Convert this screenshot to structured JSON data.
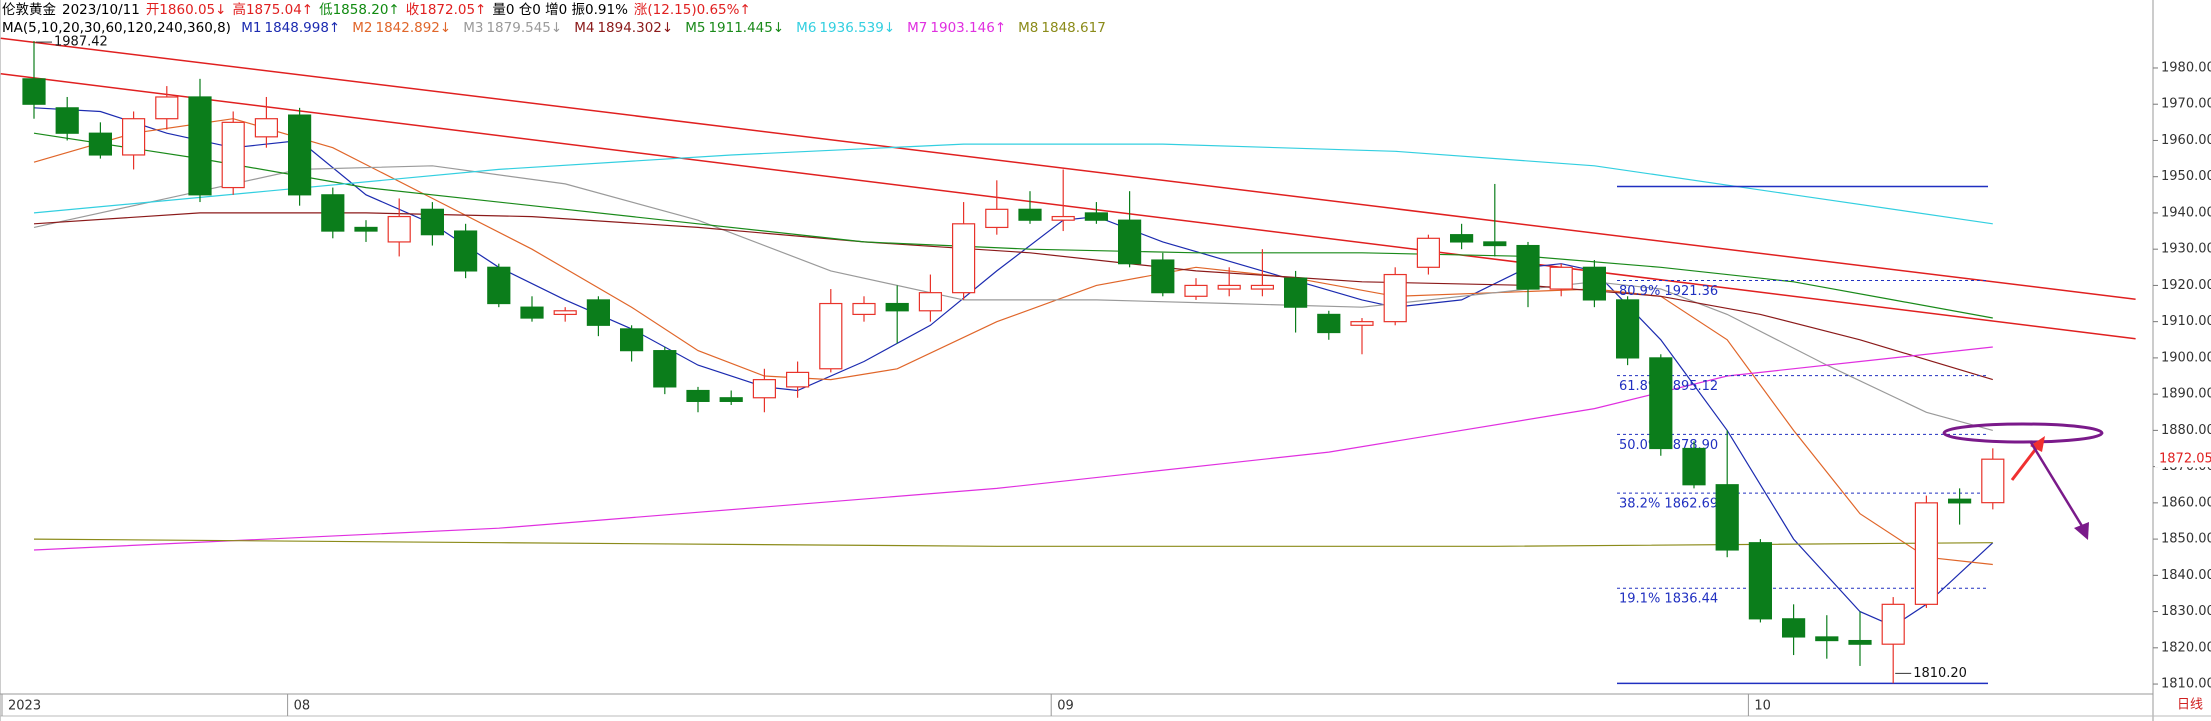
{
  "chart_data": {
    "type": "candlestick",
    "header": [
      {
        "text": "伦敦黄金",
        "color": "#000000"
      },
      {
        "text": "2023/10/11",
        "color": "#000000"
      },
      {
        "text": "开1860.05↓",
        "color": "#e02020"
      },
      {
        "text": "高1875.04↑",
        "color": "#e02020"
      },
      {
        "text": "低1858.20↑",
        "color": "#108a10"
      },
      {
        "text": "收1872.05↑",
        "color": "#e02020"
      },
      {
        "text": "量0 仓0 增0 振0.91%",
        "color": "#000000"
      },
      {
        "text": "涨(12.15)0.65%↑",
        "color": "#e02020"
      }
    ],
    "ma_title": "MA(5,10,20,30,60,120,240,360,8)",
    "categories": [
      "2023",
      null,
      null,
      null,
      null,
      null,
      null,
      null,
      "08",
      null,
      null,
      null,
      null,
      null,
      null,
      null,
      null,
      null,
      null,
      null,
      null,
      null,
      null,
      null,
      null,
      null,
      null,
      null,
      null,
      null,
      null,
      "09",
      null,
      null,
      null,
      null,
      null,
      null,
      null,
      null,
      null,
      null,
      null,
      null,
      null,
      null,
      null,
      null,
      null,
      null,
      null,
      null,
      "10",
      null,
      null,
      null,
      null,
      null,
      null,
      null
    ],
    "open": [
      1977,
      1969,
      1962,
      1956,
      1966,
      1972,
      1947,
      1961,
      1967,
      1945,
      1936,
      1932,
      1941,
      1935,
      1925,
      1914,
      1912,
      1916,
      1908,
      1902,
      1891,
      1889,
      1889,
      1892,
      1897,
      1912,
      1915,
      1913,
      1918,
      1936,
      1941,
      1938,
      1940,
      1938,
      1927,
      1917,
      1919,
      1919,
      1922,
      1912,
      1909,
      1910,
      1925,
      1934,
      1932,
      1931,
      1919,
      1925,
      1916,
      1900,
      1875,
      1865,
      1849,
      1828,
      1823,
      1822,
      1821,
      1832,
      1861,
      1860.05
    ],
    "high": [
      1987.42,
      1972,
      1965,
      1968,
      1975,
      1977,
      1968,
      1972,
      1969,
      1947,
      1938,
      1944,
      1943,
      1937,
      1926,
      1917,
      1914,
      1917,
      1909,
      1903,
      1892,
      1891,
      1897,
      1899,
      1919,
      1917,
      1920,
      1923,
      1943,
      1949,
      1946,
      1952,
      1943,
      1946,
      1929,
      1922,
      1925,
      1930,
      1924,
      1913,
      1911,
      1925,
      1934,
      1937,
      1948,
      1932,
      1926,
      1927,
      1917,
      1901,
      1877,
      1880,
      1850,
      1832,
      1829,
      1830,
      1834,
      1862,
      1864,
      1875.04
    ],
    "low": [
      1966,
      1960,
      1955,
      1952,
      1963,
      1943,
      1945,
      1958,
      1942,
      1933,
      1932,
      1928,
      1931,
      1922,
      1914,
      1910,
      1910,
      1906,
      1899,
      1890,
      1885,
      1887,
      1885,
      1889,
      1896,
      1910,
      1904,
      1910,
      1916,
      1934,
      1937,
      1935,
      1937,
      1925,
      1917,
      1916,
      1917,
      1917,
      1907,
      1905,
      1901,
      1909,
      1923,
      1930,
      1928,
      1914,
      1917,
      1914,
      1898,
      1873,
      1864,
      1845,
      1827,
      1818,
      1817,
      1815,
      1810.2,
      1831,
      1854,
      1858.2
    ],
    "close": [
      1970,
      1962,
      1956,
      1966,
      1972,
      1945,
      1965,
      1966,
      1945,
      1935,
      1935,
      1939,
      1934,
      1924,
      1915,
      1911,
      1913,
      1909,
      1902,
      1892,
      1888,
      1888,
      1894,
      1896,
      1915,
      1915,
      1913,
      1918,
      1937,
      1941,
      1938,
      1939,
      1938,
      1926,
      1918,
      1920,
      1920,
      1920,
      1914,
      1907,
      1910,
      1923,
      1933,
      1932,
      1931,
      1919,
      1925,
      1916,
      1900,
      1875,
      1865,
      1847,
      1828,
      1823,
      1822,
      1821,
      1832,
      1860,
      1860,
      1872.05
    ],
    "up_color": "#e8332a",
    "down_color": "#0b7d1b",
    "series": [
      {
        "name": "M1",
        "last": "1848.998↑",
        "color": "#1c2bb0",
        "x": [
          1,
          3,
          5,
          7,
          9,
          11,
          13,
          15,
          17,
          19,
          21,
          23,
          24,
          26,
          28,
          30,
          32,
          33,
          35,
          38,
          41,
          42,
          44,
          46,
          47,
          48,
          50,
          52,
          54,
          56,
          57,
          58,
          60
        ],
        "values": [
          1969,
          1968,
          1962,
          1958,
          1960,
          1945,
          1937,
          1925,
          1916,
          1908,
          1898,
          1892,
          1891,
          1899,
          1909,
          1924,
          1938,
          1939,
          1932,
          1924,
          1916,
          1914,
          1916,
          1925,
          1926,
          1924,
          1905,
          1880,
          1850,
          1830,
          1826,
          1832,
          1849
        ]
      },
      {
        "name": "M2",
        "last": "1842.892↓",
        "color": "#e0662a",
        "x": [
          1,
          4,
          7,
          10,
          13,
          16,
          19,
          21,
          23,
          25,
          27,
          30,
          33,
          36,
          39,
          42,
          45,
          48,
          50,
          52,
          54,
          56,
          58,
          60
        ],
        "values": [
          1954,
          1962,
          1966,
          1958,
          1944,
          1930,
          1914,
          1902,
          1895,
          1894,
          1897,
          1910,
          1920,
          1925,
          1922,
          1917,
          1918,
          1919,
          1917,
          1905,
          1880,
          1857,
          1845,
          1843
        ]
      },
      {
        "name": "M3",
        "last": "1879.545↓",
        "color": "#9a9a9a",
        "x": [
          1,
          5,
          9,
          13,
          17,
          21,
          25,
          29,
          33,
          37,
          41,
          45,
          48,
          50,
          52,
          55,
          58,
          60
        ],
        "values": [
          1936,
          1944,
          1952,
          1953,
          1948,
          1938,
          1924,
          1916,
          1916,
          1915,
          1914,
          1918,
          1921,
          1919,
          1912,
          1898,
          1885,
          1880
        ]
      },
      {
        "name": "M4",
        "last": "1894.302↓",
        "color": "#8b1a1a",
        "x": [
          1,
          6,
          11,
          16,
          21,
          26,
          31,
          36,
          41,
          46,
          50,
          53,
          56,
          60
        ],
        "values": [
          1937,
          1940,
          1940,
          1939,
          1936,
          1932,
          1929,
          1924,
          1921,
          1920,
          1917,
          1912,
          1905,
          1894
        ]
      },
      {
        "name": "M5",
        "last": "1911.445↓",
        "color": "#1a8a1a",
        "x": [
          1,
          6,
          11,
          16,
          21,
          26,
          31,
          36,
          41,
          46,
          50,
          54,
          57,
          60
        ],
        "values": [
          1962,
          1955,
          1947,
          1942,
          1937,
          1932,
          1930,
          1929,
          1929,
          1928,
          1925,
          1921,
          1916,
          1911
        ]
      },
      {
        "name": "M6",
        "last": "1936.539↓",
        "color": "#33cfe0",
        "x": [
          1,
          8,
          15,
          22,
          29,
          35,
          42,
          48,
          54,
          60
        ],
        "values": [
          1940,
          1946,
          1952,
          1956,
          1959,
          1959,
          1957,
          1953,
          1945,
          1937
        ]
      },
      {
        "name": "M7",
        "last": "1903.146↑",
        "color": "#e030e0",
        "x": [
          1,
          15,
          30,
          40,
          48,
          52,
          56,
          60
        ],
        "values": [
          1847,
          1853,
          1864,
          1874,
          1886,
          1895,
          1899,
          1903
        ]
      },
      {
        "name": "M8",
        "last": "1848.617",
        "color": "#8b8b1a",
        "x": [
          1,
          15,
          30,
          45,
          60
        ],
        "values": [
          1850,
          1849,
          1848,
          1848,
          1849
        ]
      }
    ],
    "trendlines": [
      {
        "color": "#e02020",
        "x": [
          0,
          64.3
        ],
        "values": [
          1988.2,
          1916.2
        ]
      },
      {
        "color": "#e02020",
        "x": [
          0,
          64.3
        ],
        "values": [
          1978.4,
          1905.3
        ]
      }
    ],
    "hlines": [
      1947.3,
      1810.2
    ],
    "fib": [
      {
        "value": 1921.36,
        "label": "80.9% 1921.36"
      },
      {
        "value": 1895.12,
        "label": "61.8% 1895.12"
      },
      {
        "value": 1878.9,
        "label": "50.0% 1878.90"
      },
      {
        "value": 1862.69,
        "label": "38.2% 1862.69"
      },
      {
        "value": 1836.44,
        "label": "19.1% 1836.44"
      }
    ],
    "annotations": [
      {
        "x": 1,
        "value": 1987.42,
        "label": "1987.42"
      },
      {
        "x": 57,
        "value": 1810.2,
        "label": "1810.20"
      }
    ],
    "last_price": 1872.05,
    "period": "日线",
    "ylim": [
      1805.6,
      1989.1
    ],
    "yticks": [
      {
        "value": 1810,
        "label": "1810.00"
      },
      {
        "value": 1820,
        "label": "1820.00"
      },
      {
        "value": 1830,
        "label": "1830.00"
      },
      {
        "value": 1840,
        "label": "1840.00"
      },
      {
        "value": 1850,
        "label": "1850.00"
      },
      {
        "value": 1860,
        "label": "1860.00"
      },
      {
        "value": 1870,
        "label": "1870.00"
      },
      {
        "value": 1880,
        "label": "1880.00"
      },
      {
        "value": 1890,
        "label": "1890.00"
      },
      {
        "value": 1900,
        "label": "1900.00"
      },
      {
        "value": 1910,
        "label": "1910.00"
      },
      {
        "value": 1920,
        "label": "1920.00"
      },
      {
        "value": 1930,
        "label": "1930.00"
      },
      {
        "value": 1940,
        "label": "1940.00"
      },
      {
        "value": 1950,
        "label": "1950.00"
      },
      {
        "value": 1960,
        "label": "1960.00"
      },
      {
        "value": 1970,
        "label": "1970.00"
      },
      {
        "value": 1980,
        "label": "1980.00"
      }
    ]
  }
}
